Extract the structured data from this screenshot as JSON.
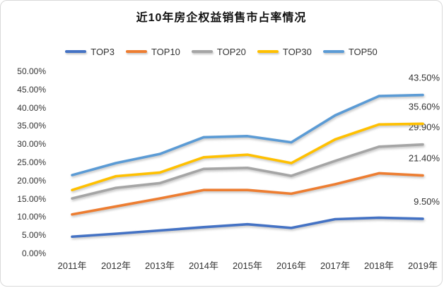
{
  "card": {
    "background": "#ffffff",
    "border_color": "#d9d9d9"
  },
  "chart_data": {
    "type": "line",
    "title": "近10年房企权益销售市占率情况",
    "xlabel": "",
    "ylabel": "",
    "x_categories": [
      "2011年",
      "2012年",
      "2013年",
      "2014年",
      "2015年",
      "2016年",
      "2017年",
      "2018年",
      "2019年"
    ],
    "y_ticks": [
      "50.00%",
      "45.00%",
      "40.00%",
      "35.00%",
      "30.00%",
      "25.00%",
      "20.00%",
      "15.00%",
      "10.00%",
      "5.00%",
      "0.00%"
    ],
    "ylim": [
      0,
      50
    ],
    "grid": false,
    "legend_position": "top",
    "series": [
      {
        "name": "TOP3",
        "color": "#4472C4",
        "end_label": "9.50%",
        "values": [
          4.6,
          5.4,
          6.3,
          7.2,
          8.0,
          7.0,
          9.4,
          9.8,
          9.5
        ]
      },
      {
        "name": "TOP10",
        "color": "#ED7D31",
        "end_label": "21.40%",
        "values": [
          10.7,
          12.9,
          15.1,
          17.4,
          17.4,
          16.4,
          19.0,
          22.0,
          21.4
        ]
      },
      {
        "name": "TOP20",
        "color": "#A5A5A5",
        "end_label": "29.90%",
        "values": [
          15.1,
          18.0,
          19.3,
          23.2,
          23.5,
          21.3,
          25.4,
          29.3,
          29.9
        ]
      },
      {
        "name": "TOP30",
        "color": "#FFC000",
        "end_label": "35.60%",
        "values": [
          17.4,
          21.2,
          22.2,
          26.4,
          27.1,
          24.8,
          31.3,
          35.4,
          35.6
        ]
      },
      {
        "name": "TOP50",
        "color": "#5B9BD5",
        "end_label": "43.50%",
        "values": [
          21.5,
          24.8,
          27.3,
          31.9,
          32.2,
          30.5,
          37.9,
          43.2,
          43.5
        ]
      }
    ]
  }
}
